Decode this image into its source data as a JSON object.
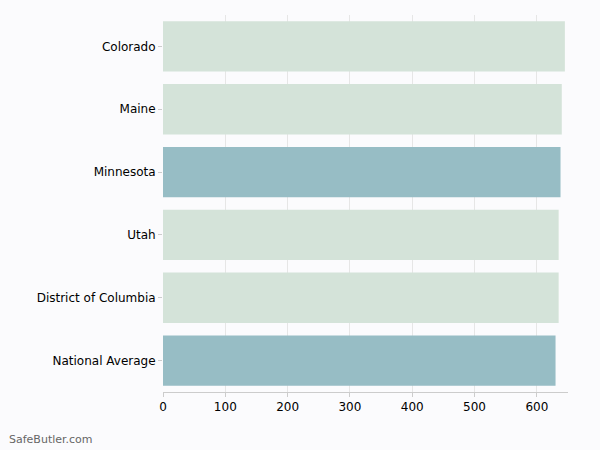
{
  "chart_data": {
    "type": "bar",
    "orientation": "horizontal",
    "categories": [
      "Colorado",
      "Maine",
      "Minnesota",
      "Utah",
      "District of Columbia",
      "National Average"
    ],
    "values": [
      645,
      640,
      638,
      635,
      635,
      630
    ],
    "colors": [
      "#d4e3d9",
      "#d4e3d9",
      "#97bdc5",
      "#d4e3d9",
      "#d4e3d9",
      "#97bdc5"
    ],
    "xlim": [
      0,
      650
    ],
    "xticks": [
      0,
      100,
      200,
      300,
      400,
      500,
      600
    ],
    "grid": true,
    "source": "SafeButler.com"
  }
}
